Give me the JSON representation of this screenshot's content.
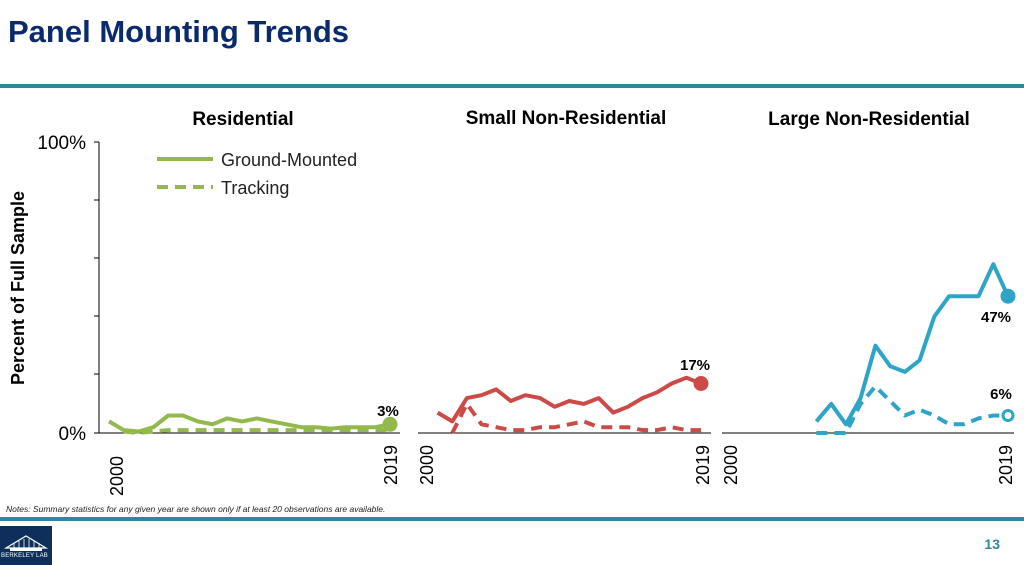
{
  "slide": {
    "title": "Panel Mounting Trends",
    "notes": "Notes: Summary statistics for any given year are shown only if at least 20 observations are available.",
    "page_number": "13",
    "logo_text": "BERKELEY LAB",
    "colors": {
      "title": "#0b2a6b",
      "rule": "#2e86a0",
      "logo_bg": "#0e2f5b"
    }
  },
  "chart_data": {
    "type": "line",
    "ylabel": "Percent of Full Sample",
    "ylim": [
      0,
      100
    ],
    "y_tick_labels": [
      "0%",
      "100%"
    ],
    "x_tick_labels": [
      "2000",
      "2019"
    ],
    "legend": [
      "Ground-Mounted",
      "Tracking"
    ],
    "legend_position": "top-left",
    "panels": [
      {
        "title": "Residential",
        "color": "#93b84c",
        "series": [
          {
            "name": "Ground-Mounted",
            "style": "solid",
            "x": [
              2000,
              2001,
              2002,
              2003,
              2004,
              2005,
              2006,
              2007,
              2008,
              2009,
              2010,
              2011,
              2012,
              2013,
              2014,
              2015,
              2016,
              2017,
              2018,
              2019
            ],
            "y": [
              4,
              1,
              0.5,
              2,
              6,
              6,
              4,
              3,
              5,
              4,
              5,
              4,
              3,
              2,
              2,
              1.5,
              2,
              2,
              2,
              3
            ]
          },
          {
            "name": "Tracking",
            "style": "dashed",
            "x": [
              2001,
              2002,
              2003,
              2004,
              2005,
              2006,
              2007,
              2008,
              2009,
              2010,
              2011,
              2012,
              2013,
              2014,
              2015,
              2016,
              2017,
              2018,
              2019
            ],
            "y": [
              0.5,
              0,
              0.5,
              1,
              1,
              1,
              1,
              1,
              1,
              1,
              1,
              1,
              1,
              1,
              1,
              1,
              1,
              1,
              1
            ]
          }
        ],
        "end_label": "3%",
        "end_value": 3,
        "end_marker": "filled"
      },
      {
        "title": "Small Non-Residential",
        "color": "#cc4a48",
        "series": [
          {
            "name": "Ground-Mounted",
            "style": "solid",
            "x": [
              2001,
              2002,
              2003,
              2004,
              2005,
              2006,
              2007,
              2008,
              2009,
              2010,
              2011,
              2012,
              2013,
              2014,
              2015,
              2016,
              2017,
              2018,
              2019
            ],
            "y": [
              7,
              4,
              12,
              13,
              15,
              11,
              13,
              12,
              9,
              11,
              10,
              12,
              7,
              9,
              12,
              14,
              17,
              19,
              17
            ]
          },
          {
            "name": "Tracking",
            "style": "dashed",
            "x": [
              2002,
              2003,
              2004,
              2005,
              2006,
              2007,
              2008,
              2009,
              2010,
              2011,
              2012,
              2013,
              2014,
              2015,
              2016,
              2017,
              2018,
              2019
            ],
            "y": [
              0,
              10,
              3,
              2,
              1,
              1,
              2,
              2,
              3,
              4,
              2,
              2,
              2,
              1,
              1,
              2,
              1,
              1
            ]
          }
        ],
        "end_label": "17%",
        "end_value": 17,
        "end_marker": "filled"
      },
      {
        "title": "Large Non-Residential",
        "color": "#2ea4c7",
        "series": [
          {
            "name": "Ground-Mounted",
            "style": "solid",
            "x": [
              2006,
              2007,
              2008,
              2009,
              2010,
              2011,
              2012,
              2013,
              2014,
              2015,
              2016,
              2017,
              2018,
              2019
            ],
            "y": [
              4,
              10,
              3,
              12,
              30,
              23,
              21,
              25,
              40,
              47,
              47,
              47,
              58,
              47
            ]
          },
          {
            "name": "Tracking",
            "style": "dashed",
            "x": [
              2006,
              2007,
              2008,
              2009,
              2010,
              2011,
              2012,
              2013,
              2014,
              2015,
              2016,
              2017,
              2018,
              2019
            ],
            "y": [
              0,
              0,
              0,
              10,
              16,
              11,
              6,
              8,
              6,
              3,
              3,
              5,
              6,
              6
            ]
          }
        ],
        "end_label": "47%",
        "end_value": 47,
        "end_marker": "filled",
        "end_label_2": "6%",
        "end_value_2": 6,
        "end_marker_2": "hollow"
      }
    ]
  }
}
